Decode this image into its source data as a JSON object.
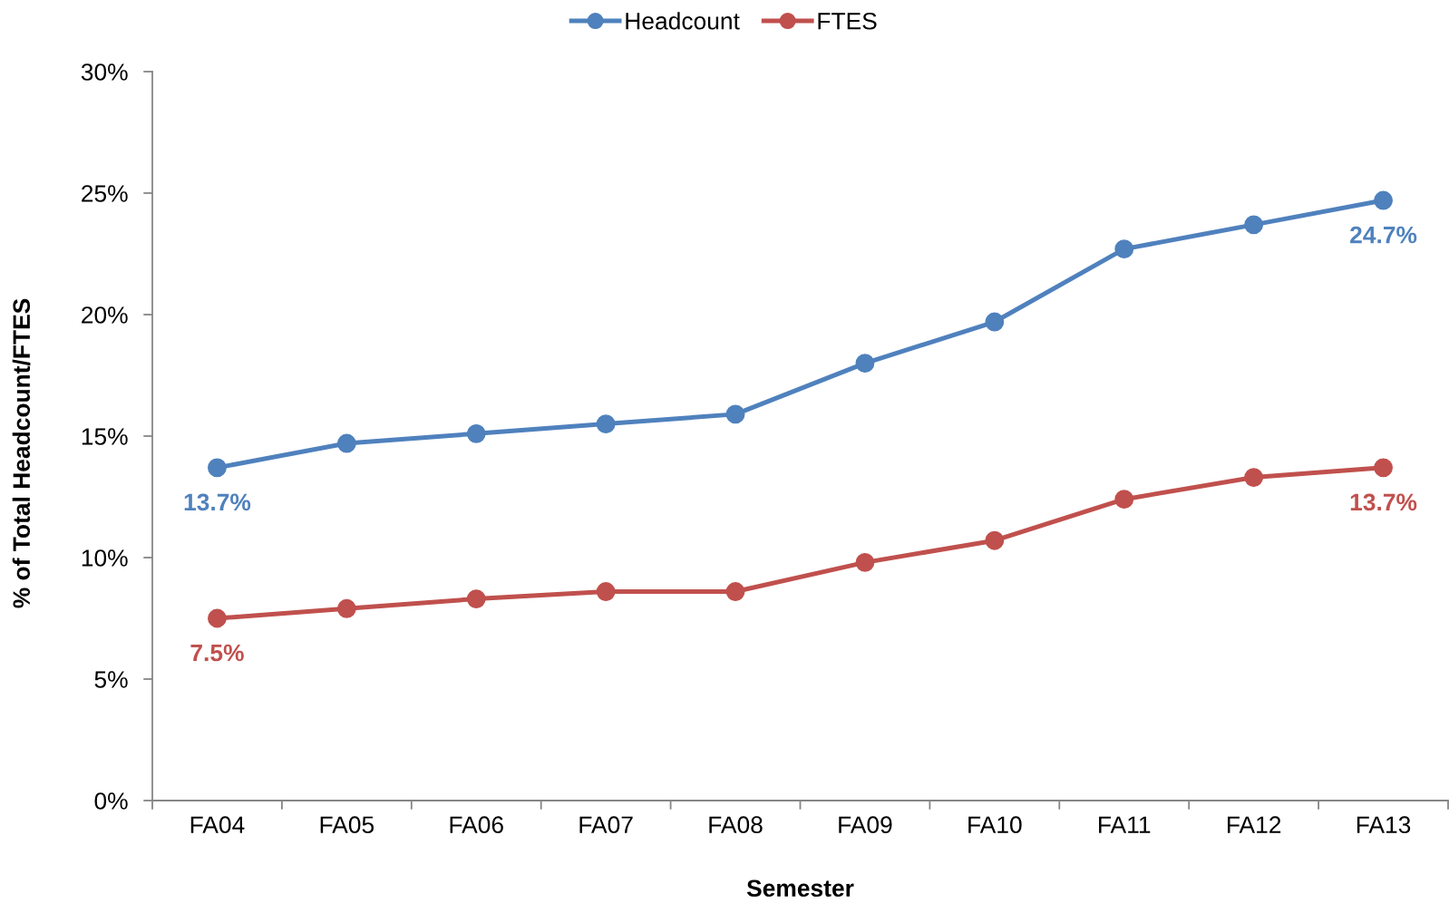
{
  "chart_data": {
    "type": "line",
    "categories": [
      "FA04",
      "FA05",
      "FA06",
      "FA07",
      "FA08",
      "FA09",
      "FA10",
      "FA11",
      "FA12",
      "FA13"
    ],
    "series": [
      {
        "name": "Headcount",
        "color": "#4f81bd",
        "values": [
          13.7,
          14.7,
          15.1,
          15.5,
          15.9,
          18.0,
          19.7,
          22.7,
          23.7,
          24.7
        ],
        "value_labels": [
          "13.7%",
          null,
          null,
          null,
          null,
          null,
          null,
          null,
          null,
          "24.7%"
        ]
      },
      {
        "name": "FTES",
        "color": "#c0504d",
        "values": [
          7.5,
          7.9,
          8.3,
          8.6,
          8.6,
          9.8,
          10.7,
          12.4,
          13.3,
          13.7
        ],
        "value_labels": [
          "7.5%",
          null,
          null,
          null,
          null,
          null,
          null,
          null,
          null,
          "13.7%"
        ]
      }
    ],
    "xlabel": "Semester",
    "ylabel": "% of Total Headcount/FTES",
    "ylim": [
      0,
      30
    ],
    "yticks": [
      {
        "value": 0,
        "label": "0%"
      },
      {
        "value": 5,
        "label": "5%"
      },
      {
        "value": 10,
        "label": "10%"
      },
      {
        "value": 15,
        "label": "15%"
      },
      {
        "value": 20,
        "label": "20%"
      },
      {
        "value": 25,
        "label": "25%"
      },
      {
        "value": 30,
        "label": "30%"
      }
    ],
    "grid": false,
    "legend": "top",
    "marker": "circle",
    "line_style": "solid"
  }
}
